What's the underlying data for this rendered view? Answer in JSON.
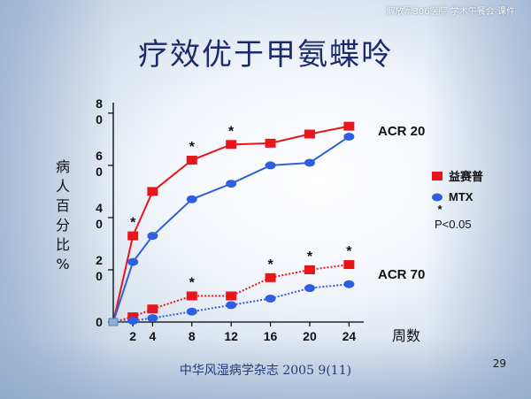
{
  "header": {
    "note": "解放军306医院  学术午餐会  课件"
  },
  "slide": {
    "title": "疗效优于甲氨蝶呤",
    "source": "中华风湿病学杂志  2005 9(11)",
    "page_number": "29"
  },
  "chart_data": {
    "type": "line",
    "title": "",
    "xlabel": "周数",
    "ylabel_chars": [
      "病",
      "人",
      "百",
      "分",
      "比",
      "%"
    ],
    "x_ticks": [
      2,
      4,
      8,
      12,
      16,
      20,
      24
    ],
    "y_ticks": [
      {
        "value": 0,
        "label": [
          "0"
        ]
      },
      {
        "value": 20,
        "label": [
          "2",
          "0"
        ]
      },
      {
        "value": 40,
        "label": [
          "4",
          "0"
        ]
      },
      {
        "value": 60,
        "label": [
          "6",
          "0"
        ]
      },
      {
        "value": 80,
        "label": [
          "8",
          "0"
        ]
      }
    ],
    "xlim": [
      0,
      25.5
    ],
    "ylim": [
      0,
      82
    ],
    "grid": false,
    "legend_position": "right",
    "group_labels": [
      {
        "text": "ACR 20",
        "near": "top"
      },
      {
        "text": "ACR 70",
        "near": "bottom"
      }
    ],
    "legend": [
      {
        "label": "益赛普",
        "marker": "square",
        "color": "#e8161b"
      },
      {
        "label": "MTX",
        "marker": "circle",
        "color": "#2f5fe0"
      }
    ],
    "significance_note": {
      "symbol": "*",
      "text": "P<0.05"
    },
    "series": [
      {
        "name": "益赛普",
        "group": "ACR 20",
        "style": "solid",
        "marker": "square",
        "color": "#e8161b",
        "x": [
          0,
          2,
          4,
          8,
          12,
          16,
          20,
          24
        ],
        "y": [
          0,
          33,
          50,
          62,
          68,
          68.5,
          72,
          75
        ],
        "significant_at": [
          2,
          8,
          12
        ]
      },
      {
        "name": "MTX",
        "group": "ACR 20",
        "style": "solid",
        "marker": "circle",
        "color": "#2f5fe0",
        "x": [
          0,
          2,
          4,
          8,
          12,
          16,
          20,
          24
        ],
        "y": [
          0,
          23,
          33,
          47,
          53,
          60,
          61,
          71
        ],
        "significant_at": []
      },
      {
        "name": "益赛普",
        "group": "ACR 70",
        "style": "dotted",
        "marker": "square",
        "color": "#e8161b",
        "x": [
          0,
          2,
          4,
          8,
          12,
          16,
          20,
          24
        ],
        "y": [
          0,
          2,
          5,
          10,
          10,
          17,
          20,
          22
        ],
        "significant_at": [
          8,
          16,
          20,
          24
        ]
      },
      {
        "name": "MTX",
        "group": "ACR 70",
        "style": "dotted",
        "marker": "circle",
        "color": "#2f5fe0",
        "x": [
          0,
          2,
          4,
          8,
          12,
          16,
          20,
          24
        ],
        "y": [
          0,
          0.5,
          1.5,
          4,
          6.5,
          9,
          13,
          14.5
        ],
        "significant_at": []
      }
    ]
  }
}
